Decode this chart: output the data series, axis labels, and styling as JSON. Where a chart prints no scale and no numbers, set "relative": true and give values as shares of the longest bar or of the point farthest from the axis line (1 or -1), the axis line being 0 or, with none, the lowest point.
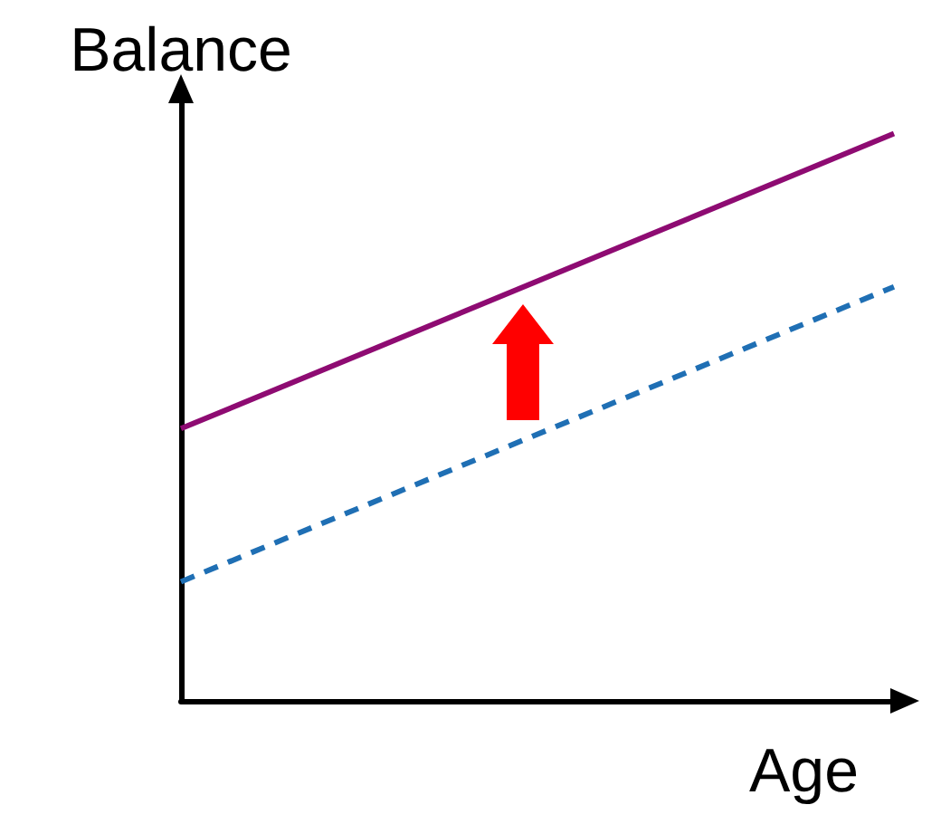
{
  "chart_data": {
    "type": "line",
    "xlabel": "Age",
    "ylabel": "Balance",
    "relative": true,
    "categories": [
      null,
      null
    ],
    "series": [
      {
        "color": "#8e0b72",
        "line_style": "solid",
        "values": [
          0.48,
          1
        ]
      },
      {
        "color": "#1f6fb4",
        "line_style": "dashed",
        "values": [
          0.21,
          0.73
        ]
      }
    ],
    "marker": "none",
    "grid": false
  }
}
